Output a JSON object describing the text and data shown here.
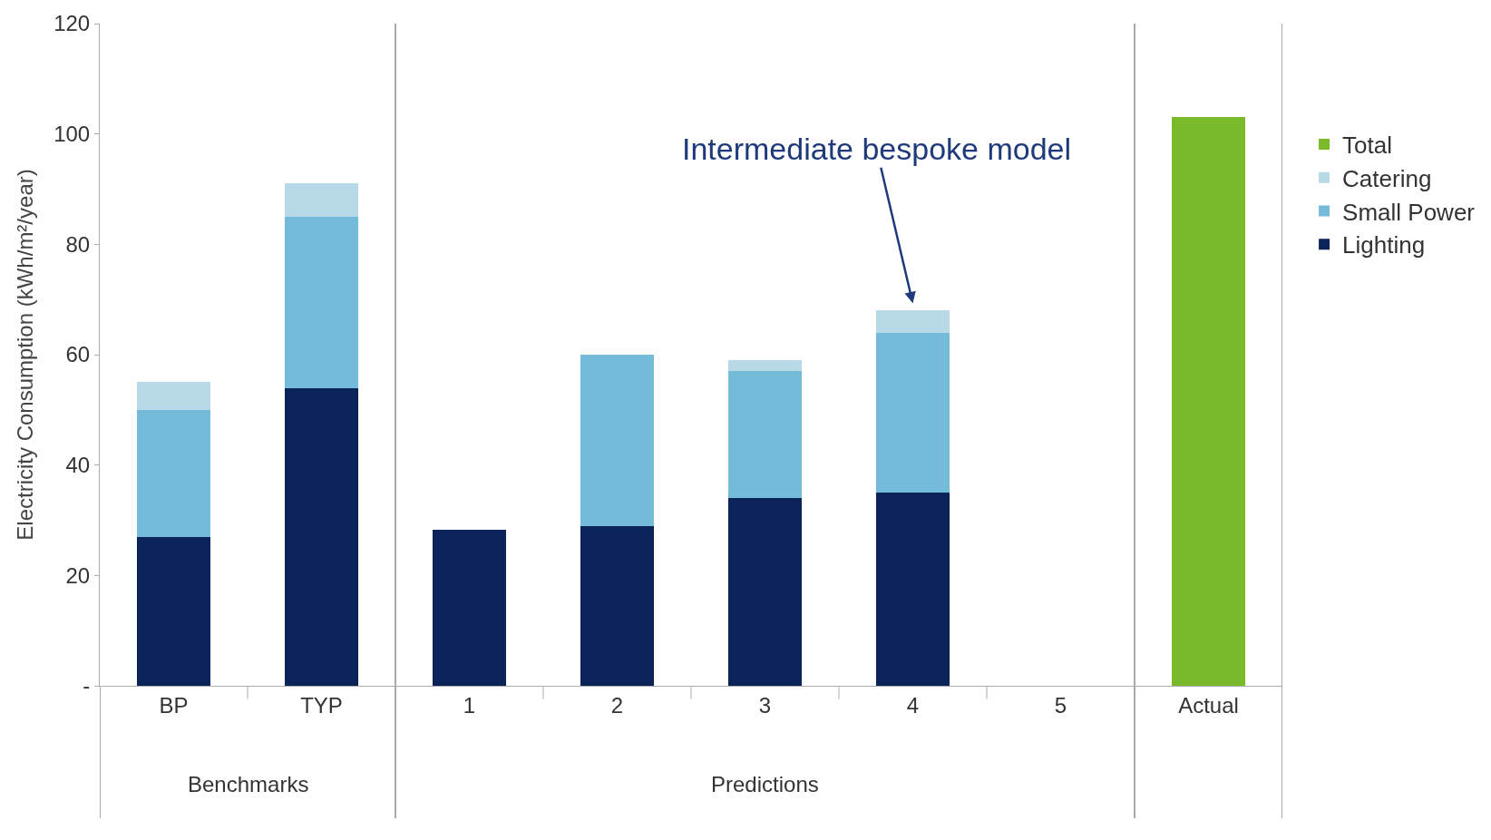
{
  "chart_data": {
    "type": "bar",
    "stacked": true,
    "ylabel": "Electricity Consumption (kWh/m²/year)",
    "categories": [
      "BP",
      "TYP",
      "1",
      "2",
      "3",
      "4",
      "5",
      "Actual"
    ],
    "series": [
      {
        "name": "Lighting",
        "color": "#0a2359",
        "values": [
          27,
          54,
          28.3,
          29,
          34,
          35,
          null,
          null
        ]
      },
      {
        "name": "Small Power",
        "color": "#74bbd9",
        "values": [
          23,
          31,
          null,
          31,
          23,
          29,
          null,
          null
        ]
      },
      {
        "name": "Catering",
        "color": "#b7d9e8",
        "values": [
          5,
          6,
          null,
          null,
          2,
          4,
          null,
          null
        ]
      },
      {
        "name": "Total",
        "color": "#7ab929",
        "values": [
          null,
          null,
          null,
          null,
          null,
          null,
          null,
          103
        ]
      }
    ],
    "ylim": [
      0,
      120
    ],
    "yticks": [
      {
        "value": 0,
        "label": "-"
      },
      20,
      40,
      60,
      80,
      100,
      120
    ],
    "legend": "right",
    "annotations": [
      {
        "text": "Intermediate bespoke model",
        "x": "4",
        "y": 68
      },
      "Benchmarks",
      "Predictions"
    ]
  }
}
